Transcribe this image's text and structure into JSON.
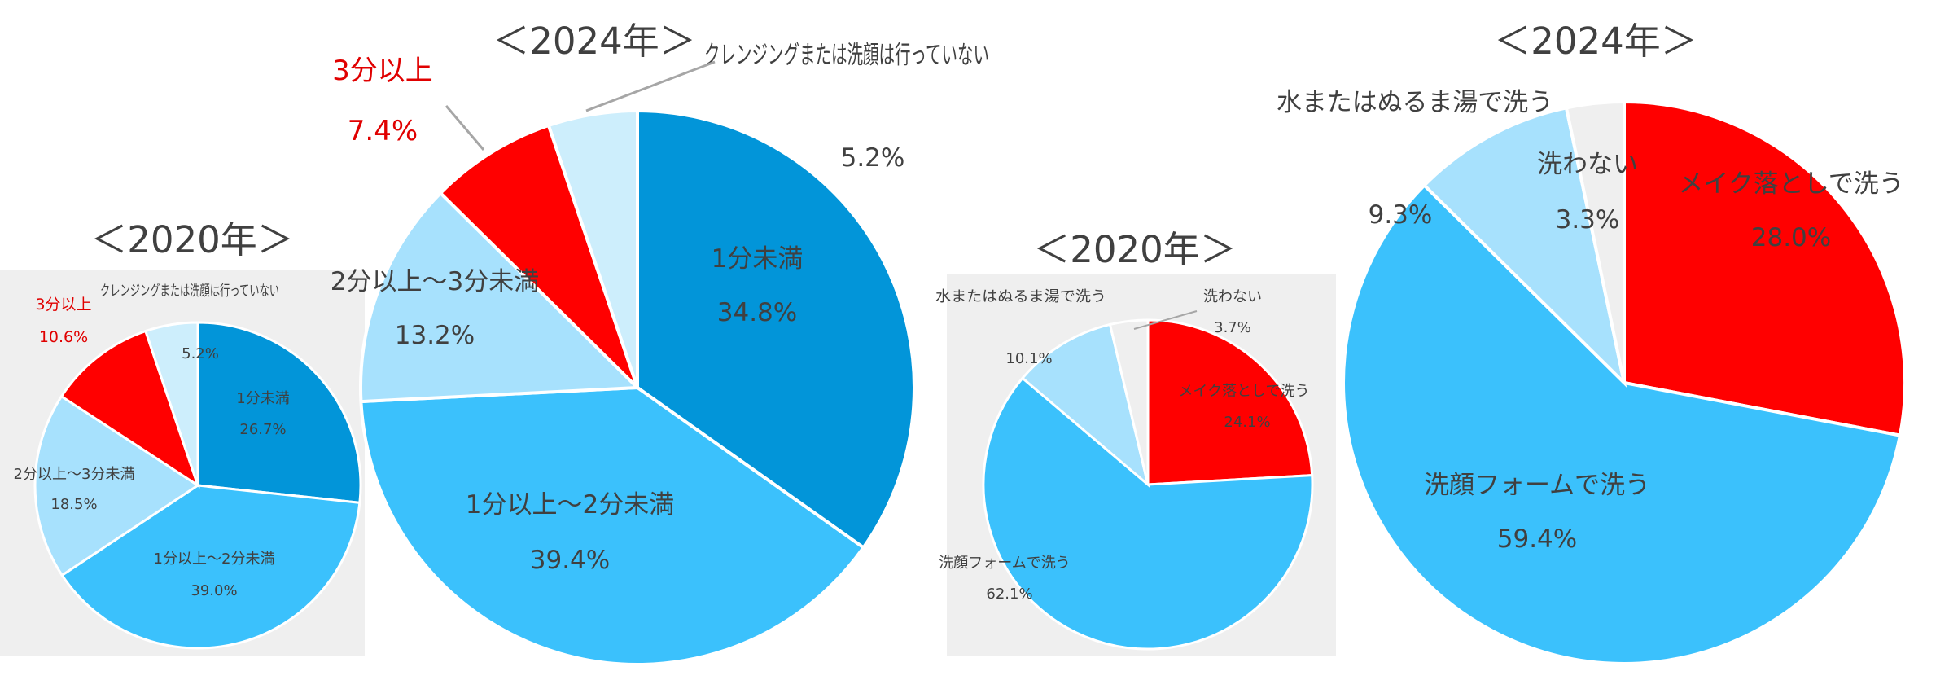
{
  "chart_data": [
    {
      "type": "pie",
      "title": "＜2020年＞",
      "slices": [
        {
          "label": "1分未満",
          "value": 26.7,
          "display": "26.7%",
          "color": "#0295d9"
        },
        {
          "label": "1分以上～2分未満",
          "value": 39.0,
          "display": "39.0%",
          "color": "#3bc1fc"
        },
        {
          "label": "2分以上～3分未満",
          "value": 18.5,
          "display": "18.5%",
          "color": "#a7e1fd"
        },
        {
          "label": "3分以上",
          "value": 10.6,
          "display": "10.6%",
          "color": "#ff0000"
        },
        {
          "label": "クレンジングまたは洗顔は行っていない",
          "value": 5.2,
          "display": "5.2%",
          "color": "#cdeefc"
        }
      ]
    },
    {
      "type": "pie",
      "title": "＜2024年＞",
      "slices": [
        {
          "label": "1分未満",
          "value": 34.8,
          "display": "34.8%",
          "color": "#0295d9"
        },
        {
          "label": "1分以上～2分未満",
          "value": 39.4,
          "display": "39.4%",
          "color": "#3bc1fc"
        },
        {
          "label": "2分以上～3分未満",
          "value": 13.2,
          "display": "13.2%",
          "color": "#a7e1fd"
        },
        {
          "label": "3分以上",
          "value": 7.4,
          "display": "7.4%",
          "color": "#ff0000"
        },
        {
          "label": "クレンジングまたは洗顔は行っていない",
          "value": 5.2,
          "display": "5.2%",
          "color": "#cdeefc"
        }
      ]
    },
    {
      "type": "pie",
      "title": "＜2020年＞",
      "slices": [
        {
          "label": "メイク落としで洗う",
          "value": 24.1,
          "display": "24.1%",
          "color": "#ff0000"
        },
        {
          "label": "洗顔フォームで洗う",
          "value": 62.1,
          "display": "62.1%",
          "color": "#3bc1fc"
        },
        {
          "label": "水またはぬるま湯で洗う",
          "value": 10.1,
          "display": "10.1%",
          "color": "#a7e1fd"
        },
        {
          "label": "洗わない",
          "value": 3.7,
          "display": "3.7%",
          "color": "#efefef"
        }
      ]
    },
    {
      "type": "pie",
      "title": "＜2024年＞",
      "slices": [
        {
          "label": "メイク落としで洗う",
          "value": 28.0,
          "display": "28.0%",
          "color": "#ff0000"
        },
        {
          "label": "洗顔フォームで洗う",
          "value": 59.4,
          "display": "59.4%",
          "color": "#3bc1fc"
        },
        {
          "label": "水またはぬるま湯で洗う",
          "value": 9.3,
          "display": "9.3%",
          "color": "#a7e1fd"
        },
        {
          "label": "洗わない",
          "value": 3.3,
          "display": "3.3%",
          "color": "#efefef"
        }
      ]
    }
  ]
}
